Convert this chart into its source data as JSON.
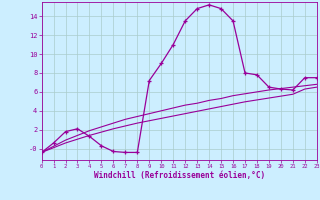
{
  "xlabel": "Windchill (Refroidissement éolien,°C)",
  "background_color": "#cceeff",
  "grid_color": "#aacccc",
  "line_color": "#990099",
  "x_main": [
    0,
    1,
    2,
    3,
    4,
    5,
    6,
    7,
    8,
    9,
    10,
    11,
    12,
    13,
    14,
    15,
    16,
    17,
    18,
    19,
    20,
    21,
    22,
    23
  ],
  "y_main": [
    -0.4,
    0.6,
    1.8,
    2.1,
    1.3,
    0.3,
    -0.3,
    -0.4,
    -0.4,
    7.2,
    9.0,
    11.0,
    13.5,
    14.8,
    15.2,
    14.8,
    13.5,
    8.0,
    7.8,
    6.5,
    6.3,
    6.2,
    7.5,
    7.5
  ],
  "y_linear1": [
    -0.4,
    0.25,
    0.9,
    1.4,
    1.9,
    2.3,
    2.7,
    3.1,
    3.4,
    3.7,
    4.0,
    4.3,
    4.6,
    4.8,
    5.1,
    5.3,
    5.6,
    5.8,
    6.0,
    6.2,
    6.35,
    6.5,
    6.65,
    6.8
  ],
  "y_linear2": [
    -0.4,
    0.1,
    0.6,
    1.0,
    1.4,
    1.75,
    2.1,
    2.4,
    2.7,
    2.95,
    3.2,
    3.45,
    3.7,
    3.95,
    4.2,
    4.45,
    4.7,
    4.95,
    5.15,
    5.35,
    5.55,
    5.75,
    6.3,
    6.5
  ],
  "xlim": [
    0,
    23
  ],
  "ylim": [
    -1.2,
    15.5
  ],
  "ytick_vals": [
    0,
    2,
    4,
    6,
    8,
    10,
    12,
    14
  ],
  "ytick_labels": [
    "-0",
    "2",
    "4",
    "6",
    "8",
    "10",
    "12",
    "14"
  ],
  "xticks": [
    0,
    1,
    2,
    3,
    4,
    5,
    6,
    7,
    8,
    9,
    10,
    11,
    12,
    13,
    14,
    15,
    16,
    17,
    18,
    19,
    20,
    21,
    22,
    23
  ]
}
